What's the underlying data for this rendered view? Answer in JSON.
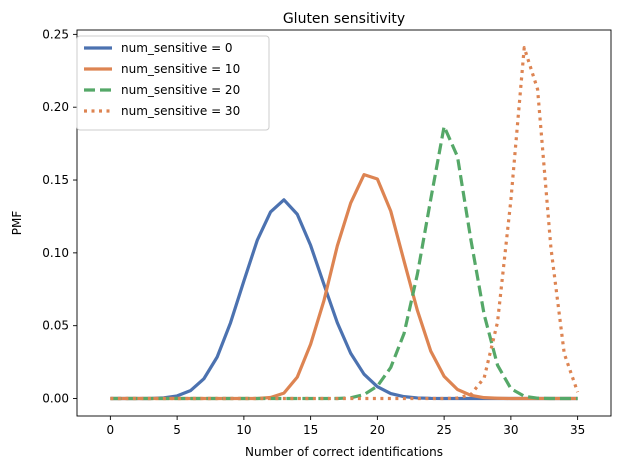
{
  "chart_data": {
    "type": "line",
    "title": "Gluten sensitivity",
    "xlabel": "Number of correct identifications",
    "ylabel": "PMF",
    "xlim": [
      -2.5,
      37.5
    ],
    "ylim": [
      -0.012,
      0.253
    ],
    "x_ticks": [
      0,
      5,
      10,
      15,
      20,
      25,
      30,
      35
    ],
    "y_ticks": [
      0.0,
      0.05,
      0.1,
      0.15,
      0.2,
      0.25
    ],
    "y_tick_labels": [
      "0.00",
      "0.05",
      "0.10",
      "0.15",
      "0.20",
      "0.25"
    ],
    "grid": false,
    "legend_position": "top-left",
    "x": [
      0,
      1,
      2,
      3,
      4,
      5,
      6,
      7,
      8,
      9,
      10,
      11,
      12,
      13,
      14,
      15,
      16,
      17,
      18,
      19,
      20,
      21,
      22,
      23,
      24,
      25,
      26,
      27,
      28,
      29,
      30,
      31,
      32,
      33,
      34,
      35
    ],
    "series": [
      {
        "name": "num_sensitive = 0",
        "color": "#4c72b0",
        "style": "solid",
        "values": [
          0.0,
          0.0,
          0.0,
          0.0,
          0.0005,
          0.0018,
          0.0054,
          0.0135,
          0.0285,
          0.052,
          0.0807,
          0.1086,
          0.1281,
          0.1364,
          0.1265,
          0.1051,
          0.0783,
          0.052,
          0.0311,
          0.0167,
          0.0081,
          0.0034,
          0.0013,
          0.0004,
          0.0001,
          0.0,
          0.0,
          0.0,
          0.0,
          0.0,
          0.0,
          0.0,
          0.0,
          0.0,
          0.0,
          0.0
        ]
      },
      {
        "name": "num_sensitive = 10",
        "color": "#dd8452",
        "style": "solid",
        "values": [
          0.0,
          0.0,
          0.0,
          0.0,
          0.0,
          0.0,
          0.0,
          0.0,
          0.0,
          0.0,
          0.0,
          0.0,
          0.0007,
          0.0037,
          0.0147,
          0.0373,
          0.0673,
          0.1048,
          0.1342,
          0.1537,
          0.1507,
          0.1287,
          0.0943,
          0.0604,
          0.0325,
          0.0152,
          0.0062,
          0.0022,
          0.0006,
          0.0002,
          0.0,
          0.0,
          0.0,
          0.0,
          0.0,
          0.0
        ]
      },
      {
        "name": "num_sensitive = 20",
        "color": "#55a868",
        "style": "dashed",
        "values": [
          0.0,
          0.0,
          0.0,
          0.0,
          0.0,
          0.0,
          0.0,
          0.0,
          0.0,
          0.0,
          0.0,
          0.0,
          0.0,
          0.0,
          0.0,
          0.0,
          0.0,
          0.0,
          0.0005,
          0.0027,
          0.0085,
          0.0213,
          0.0447,
          0.0855,
          0.1369,
          0.1868,
          0.1661,
          0.1092,
          0.0576,
          0.0229,
          0.0068,
          0.0016,
          0.0002,
          0.0,
          0.0,
          0.0
        ]
      },
      {
        "name": "num_sensitive = 30",
        "color": "#dd8452",
        "style": "dotted",
        "values": [
          0.0,
          0.0,
          0.0,
          0.0,
          0.0,
          0.0,
          0.0,
          0.0,
          0.0,
          0.0,
          0.0,
          0.0,
          0.0,
          0.0,
          0.0,
          0.0,
          0.0,
          0.0,
          0.0,
          0.0,
          0.0,
          0.0,
          0.0,
          0.0,
          0.0,
          0.0,
          0.0003,
          0.0027,
          0.0142,
          0.0524,
          0.1362,
          0.2409,
          0.2123,
          0.1034,
          0.0308,
          0.0044
        ]
      }
    ]
  }
}
